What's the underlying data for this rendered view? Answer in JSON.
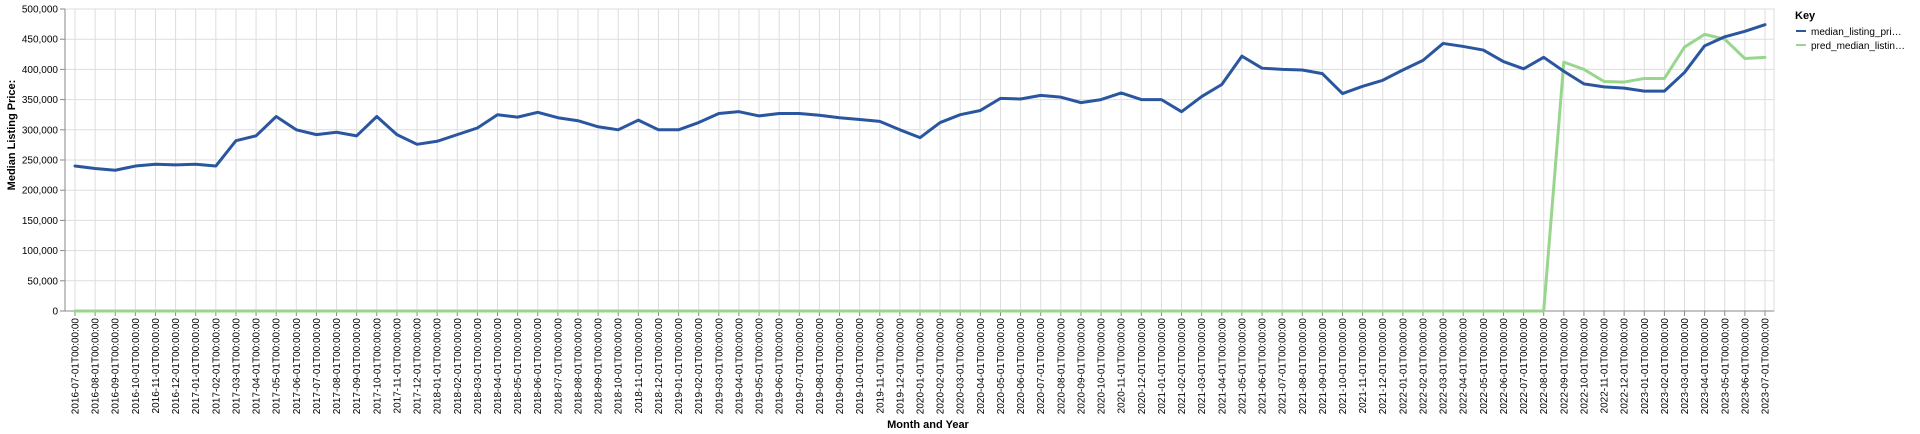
{
  "chart_data": {
    "type": "line",
    "xlabel": "Month and Year",
    "ylabel": "Median Listing Price:",
    "ylim": [
      0,
      500000
    ],
    "y_ticks": [
      "0",
      "50,000",
      "100,000",
      "150,000",
      "200,000",
      "250,000",
      "300,000",
      "350,000",
      "400,000",
      "450,000",
      "500,000"
    ],
    "grid": true,
    "legend": {
      "title": "Key",
      "placement": "right",
      "entries": [
        "median_listing_pri…",
        "pred_median_listin…"
      ]
    },
    "x": [
      "2016-07-01T00:00:00",
      "2016-08-01T00:00:00",
      "2016-09-01T00:00:00",
      "2016-10-01T00:00:00",
      "2016-11-01T00:00:00",
      "2016-12-01T00:00:00",
      "2017-01-01T00:00:00",
      "2017-02-01T00:00:00",
      "2017-03-01T00:00:00",
      "2017-04-01T00:00:00",
      "2017-05-01T00:00:00",
      "2017-06-01T00:00:00",
      "2017-07-01T00:00:00",
      "2017-08-01T00:00:00",
      "2017-09-01T00:00:00",
      "2017-10-01T00:00:00",
      "2017-11-01T00:00:00",
      "2017-12-01T00:00:00",
      "2018-01-01T00:00:00",
      "2018-02-01T00:00:00",
      "2018-03-01T00:00:00",
      "2018-04-01T00:00:00",
      "2018-05-01T00:00:00",
      "2018-06-01T00:00:00",
      "2018-07-01T00:00:00",
      "2018-08-01T00:00:00",
      "2018-09-01T00:00:00",
      "2018-10-01T00:00:00",
      "2018-11-01T00:00:00",
      "2018-12-01T00:00:00",
      "2019-01-01T00:00:00",
      "2019-02-01T00:00:00",
      "2019-03-01T00:00:00",
      "2019-04-01T00:00:00",
      "2019-05-01T00:00:00",
      "2019-06-01T00:00:00",
      "2019-07-01T00:00:00",
      "2019-08-01T00:00:00",
      "2019-09-01T00:00:00",
      "2019-10-01T00:00:00",
      "2019-11-01T00:00:00",
      "2019-12-01T00:00:00",
      "2020-01-01T00:00:00",
      "2020-02-01T00:00:00",
      "2020-03-01T00:00:00",
      "2020-04-01T00:00:00",
      "2020-05-01T00:00:00",
      "2020-06-01T00:00:00",
      "2020-07-01T00:00:00",
      "2020-08-01T00:00:00",
      "2020-09-01T00:00:00",
      "2020-10-01T00:00:00",
      "2020-11-01T00:00:00",
      "2020-12-01T00:00:00",
      "2021-01-01T00:00:00",
      "2021-02-01T00:00:00",
      "2021-03-01T00:00:00",
      "2021-04-01T00:00:00",
      "2021-05-01T00:00:00",
      "2021-06-01T00:00:00",
      "2021-07-01T00:00:00",
      "2021-08-01T00:00:00",
      "2021-09-01T00:00:00",
      "2021-10-01T00:00:00",
      "2021-11-01T00:00:00",
      "2021-12-01T00:00:00",
      "2022-01-01T00:00:00",
      "2022-02-01T00:00:00",
      "2022-03-01T00:00:00",
      "2022-04-01T00:00:00",
      "2022-05-01T00:00:00",
      "2022-06-01T00:00:00",
      "2022-07-01T00:00:00",
      "2022-08-01T00:00:00",
      "2022-09-01T00:00:00",
      "2022-10-01T00:00:00",
      "2022-11-01T00:00:00",
      "2022-12-01T00:00:00",
      "2023-01-01T00:00:00",
      "2023-02-01T00:00:00",
      "2023-03-01T00:00:00",
      "2023-04-01T00:00:00",
      "2023-05-01T00:00:00",
      "2023-06-01T00:00:00",
      "2023-07-01T00:00:00"
    ],
    "series": [
      {
        "name": "median_listing_pri…",
        "color": "#2a56a0",
        "values": [
          240000,
          236000,
          233000,
          240000,
          243000,
          242000,
          243000,
          240000,
          282000,
          290000,
          322000,
          300000,
          292000,
          296000,
          290000,
          322000,
          292000,
          276000,
          281000,
          292000,
          303000,
          325000,
          321000,
          329000,
          320000,
          315000,
          305000,
          300000,
          316000,
          300000,
          300000,
          312000,
          327000,
          330000,
          323000,
          327000,
          327000,
          324000,
          320000,
          317000,
          314000,
          300000,
          287000,
          312000,
          325000,
          332000,
          352000,
          351000,
          357000,
          354000,
          345000,
          350000,
          361000,
          350000,
          350000,
          330000,
          355000,
          375000,
          422000,
          402000,
          400000,
          399000,
          393000,
          360000,
          372000,
          382000,
          399000,
          415000,
          443000,
          438000,
          432000,
          413000,
          401000,
          420000,
          397000,
          376000,
          371000,
          369000,
          364000,
          364000,
          395000,
          439000,
          454000,
          463000,
          474000
        ]
      },
      {
        "name": "pred_median_listin…",
        "color": "#98d68e",
        "values": [
          0,
          0,
          0,
          0,
          0,
          0,
          0,
          0,
          0,
          0,
          0,
          0,
          0,
          0,
          0,
          0,
          0,
          0,
          0,
          0,
          0,
          0,
          0,
          0,
          0,
          0,
          0,
          0,
          0,
          0,
          0,
          0,
          0,
          0,
          0,
          0,
          0,
          0,
          0,
          0,
          0,
          0,
          0,
          0,
          0,
          0,
          0,
          0,
          0,
          0,
          0,
          0,
          0,
          0,
          0,
          0,
          0,
          0,
          0,
          0,
          0,
          0,
          0,
          0,
          0,
          0,
          0,
          0,
          0,
          0,
          0,
          0,
          0,
          0,
          412000,
          400000,
          380000,
          379000,
          385000,
          385000,
          437000,
          458000,
          450000,
          418000,
          420000
        ]
      }
    ]
  }
}
